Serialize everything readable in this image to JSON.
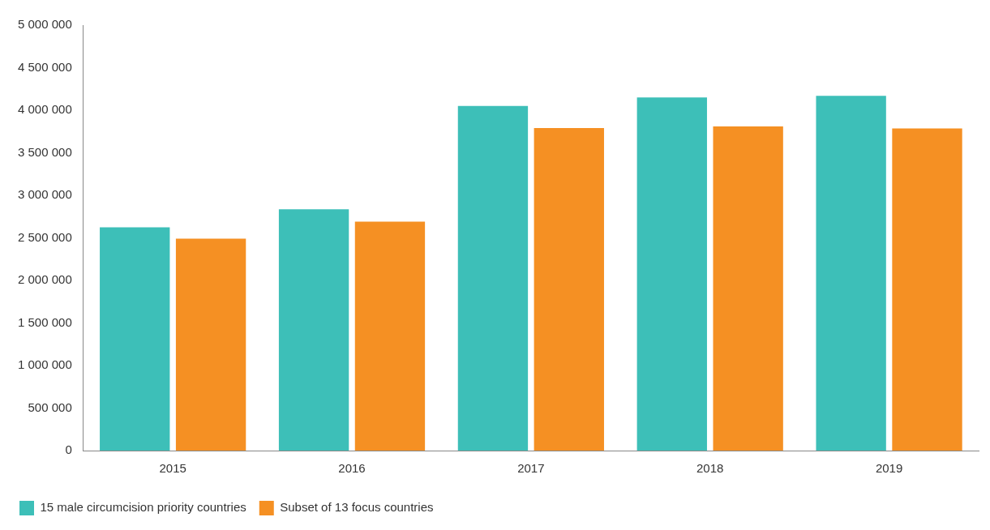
{
  "chart_data": {
    "type": "bar",
    "categories": [
      "2015",
      "2016",
      "2017",
      "2018",
      "2019"
    ],
    "series": [
      {
        "name": "15 male circumcision priority countries",
        "color": "#3dbfb8",
        "values": [
          2625000,
          2835000,
          4050000,
          4150000,
          4170000
        ]
      },
      {
        "name": "Subset of 13 focus countries",
        "color": "#f59023",
        "values": [
          2490000,
          2690000,
          3790000,
          3810000,
          3785000
        ]
      }
    ],
    "ylim": [
      0,
      5000000
    ],
    "yticks": [
      {
        "value": 0,
        "label": "0"
      },
      {
        "value": 500000,
        "label": "500 000"
      },
      {
        "value": 1000000,
        "label": "1 000 000"
      },
      {
        "value": 1500000,
        "label": "1 500 000"
      },
      {
        "value": 2000000,
        "label": "2 000 000"
      },
      {
        "value": 2500000,
        "label": "2 500 000"
      },
      {
        "value": 3000000,
        "label": "3 000 000"
      },
      {
        "value": 3500000,
        "label": "3 500 000"
      },
      {
        "value": 4000000,
        "label": "4 000 000"
      },
      {
        "value": 4500000,
        "label": "4 500 000"
      },
      {
        "value": 5000000,
        "label": "5 000 000"
      }
    ],
    "grid": false,
    "legend": "bottom left"
  }
}
